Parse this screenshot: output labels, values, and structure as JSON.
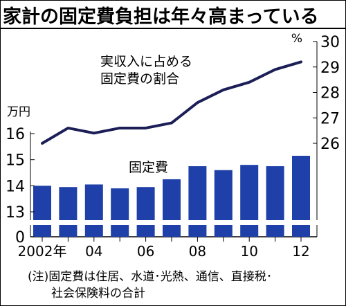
{
  "title": "家計の固定費負担は年々高まっている",
  "note_line1": "(注)固定費は住居、水道･光熱、通信、直接税･",
  "note_line2": "社会保険料の合計",
  "chart_data": [
    {
      "type": "bar",
      "series": [
        {
          "name": "固定費",
          "values": [
            14.0,
            13.95,
            14.05,
            13.9,
            13.95,
            14.25,
            14.75,
            14.6,
            14.8,
            14.75,
            15.15
          ]
        }
      ],
      "x": [
        2002,
        2003,
        2004,
        2005,
        2006,
        2007,
        2008,
        2009,
        2010,
        2011,
        2012
      ],
      "ylabel": "万円",
      "ylim": [
        12,
        16
      ],
      "y_ticks": [
        "0",
        "13",
        "14",
        "15",
        "16"
      ],
      "axis_break": true
    },
    {
      "type": "line",
      "series": [
        {
          "name": "実収入に占める固定費の割合",
          "values": [
            26.0,
            26.6,
            26.4,
            26.6,
            26.6,
            26.8,
            27.6,
            28.1,
            28.4,
            28.9,
            29.2
          ]
        }
      ],
      "x": [
        2002,
        2003,
        2004,
        2005,
        2006,
        2007,
        2008,
        2009,
        2010,
        2011,
        2012
      ],
      "ylabel": "%",
      "ylim": [
        26,
        30
      ],
      "y_ticks": [
        "26",
        "27",
        "28",
        "29",
        "30"
      ],
      "color": "#1c1f57"
    }
  ],
  "x_tick_labels": [
    "2002年",
    "04",
    "06",
    "08",
    "10",
    "12"
  ],
  "bar_label": "固定費",
  "line_label_1": "実収入に占める",
  "line_label_2": "固定費の割合",
  "colors": {
    "bar": "#1e40a8",
    "line": "#1c1f57",
    "background": "#ffffff"
  }
}
